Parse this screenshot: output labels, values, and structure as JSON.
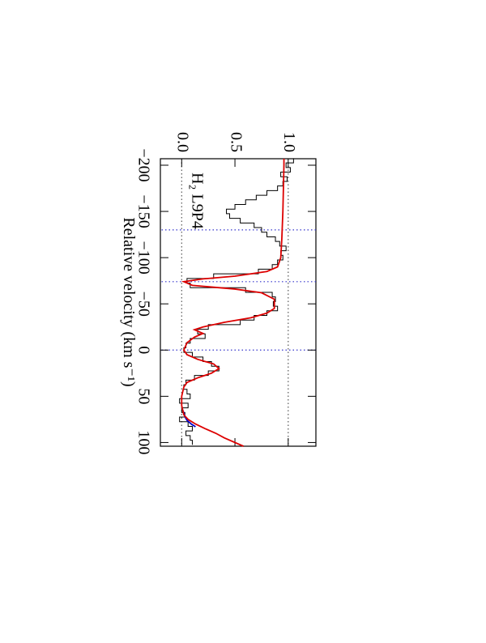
{
  "chart_data": {
    "type": "line",
    "annotation": "H₂ L9P4",
    "x_label": "Relative velocity (km s⁻¹)",
    "xlim": [
      -207,
      104
    ],
    "ylim": [
      -0.2,
      1.26
    ],
    "xticks": [
      {
        "value": -200,
        "label": "−200"
      },
      {
        "value": -150,
        "label": "−150"
      },
      {
        "value": -100,
        "label": "−100"
      },
      {
        "value": -50,
        "label": "−50"
      },
      0,
      50,
      100
    ],
    "yticks": [
      {
        "value": 0,
        "label": "0.0"
      },
      0.5,
      {
        "value": 1,
        "label": "1.0"
      }
    ],
    "hlines": [
      0,
      1
    ],
    "vlines": [
      -130,
      -74,
      0
    ],
    "series": [
      {
        "color": "#000000",
        "style": "step",
        "bins": [
          -207.5,
          -202.5,
          -197.5,
          -192.5,
          -187.5,
          -182.5,
          -177.5,
          -172.5,
          -167.5,
          -162.5,
          -157.5,
          -152.5,
          -147.5,
          -142.5,
          -137.5,
          -132.5,
          -127.5,
          -122.5,
          -117.5,
          -112.5,
          -107.5,
          -102.5,
          -97.5,
          -92.5,
          -87.5,
          -82.5,
          -77.5,
          -72.5,
          -67.5,
          -62.5,
          -57.5,
          -52.5,
          -47.5,
          -42.5,
          -37.5,
          -32.5,
          -27.5,
          -22.5,
          -17.5,
          -12.5,
          -7.5,
          -2.5,
          2.5,
          7.5,
          12.5,
          17.5,
          22.5,
          27.5,
          32.5,
          37.5,
          42.5,
          47.5,
          52.5,
          57.5,
          62.5,
          67.5,
          72.5,
          77.5,
          82.5,
          87.5,
          92.5,
          97.5,
          102.5
        ],
        "values": [
          1.05,
          0.98,
          1.02,
          0.93,
          0.99,
          0.95,
          0.9,
          0.8,
          0.7,
          0.6,
          0.5,
          0.42,
          0.45,
          0.55,
          0.68,
          0.75,
          0.8,
          0.88,
          0.92,
          0.98,
          0.93,
          0.95,
          0.9,
          0.85,
          0.72,
          0.3,
          0.05,
          0.08,
          0.6,
          0.85,
          0.88,
          0.86,
          0.9,
          0.8,
          0.68,
          0.55,
          0.25,
          0.15,
          0.22,
          0.08,
          0.04,
          0.02,
          0.1,
          0.2,
          0.28,
          0.35,
          0.25,
          0.12,
          0.04,
          0.02,
          0.05,
          0.08,
          -0.02,
          0.06,
          0.0,
          0.03,
          -0.02,
          0.06,
          0.1,
          0.04,
          0.08,
          0.1
        ]
      },
      {
        "color": "#0000cc",
        "x": [
          65,
          68,
          72,
          76,
          80,
          83
        ],
        "values": [
          0.01,
          0.02,
          0.03,
          0.05,
          0.09,
          0.13
        ]
      },
      {
        "color": "#dd0000",
        "x": [
          -207,
          -200,
          -150,
          -120,
          -100,
          -90,
          -85,
          -80,
          -77,
          -74,
          -70,
          -66,
          -62,
          -55,
          -45,
          -40,
          -35,
          -30,
          -25,
          -22,
          -18,
          -14,
          -8,
          0,
          5,
          10,
          15,
          20,
          25,
          30,
          35,
          40,
          50,
          60,
          70,
          75,
          80,
          85,
          90,
          95,
          104
        ],
        "values": [
          0.96,
          0.96,
          0.95,
          0.94,
          0.93,
          0.9,
          0.8,
          0.5,
          0.2,
          0.02,
          0.1,
          0.5,
          0.75,
          0.87,
          0.87,
          0.8,
          0.65,
          0.4,
          0.2,
          0.12,
          0.2,
          0.12,
          0.05,
          0.02,
          0.05,
          0.15,
          0.3,
          0.35,
          0.28,
          0.15,
          0.05,
          0.02,
          0.0,
          0.0,
          0.02,
          0.06,
          0.13,
          0.22,
          0.32,
          0.4,
          0.58
        ]
      }
    ]
  }
}
